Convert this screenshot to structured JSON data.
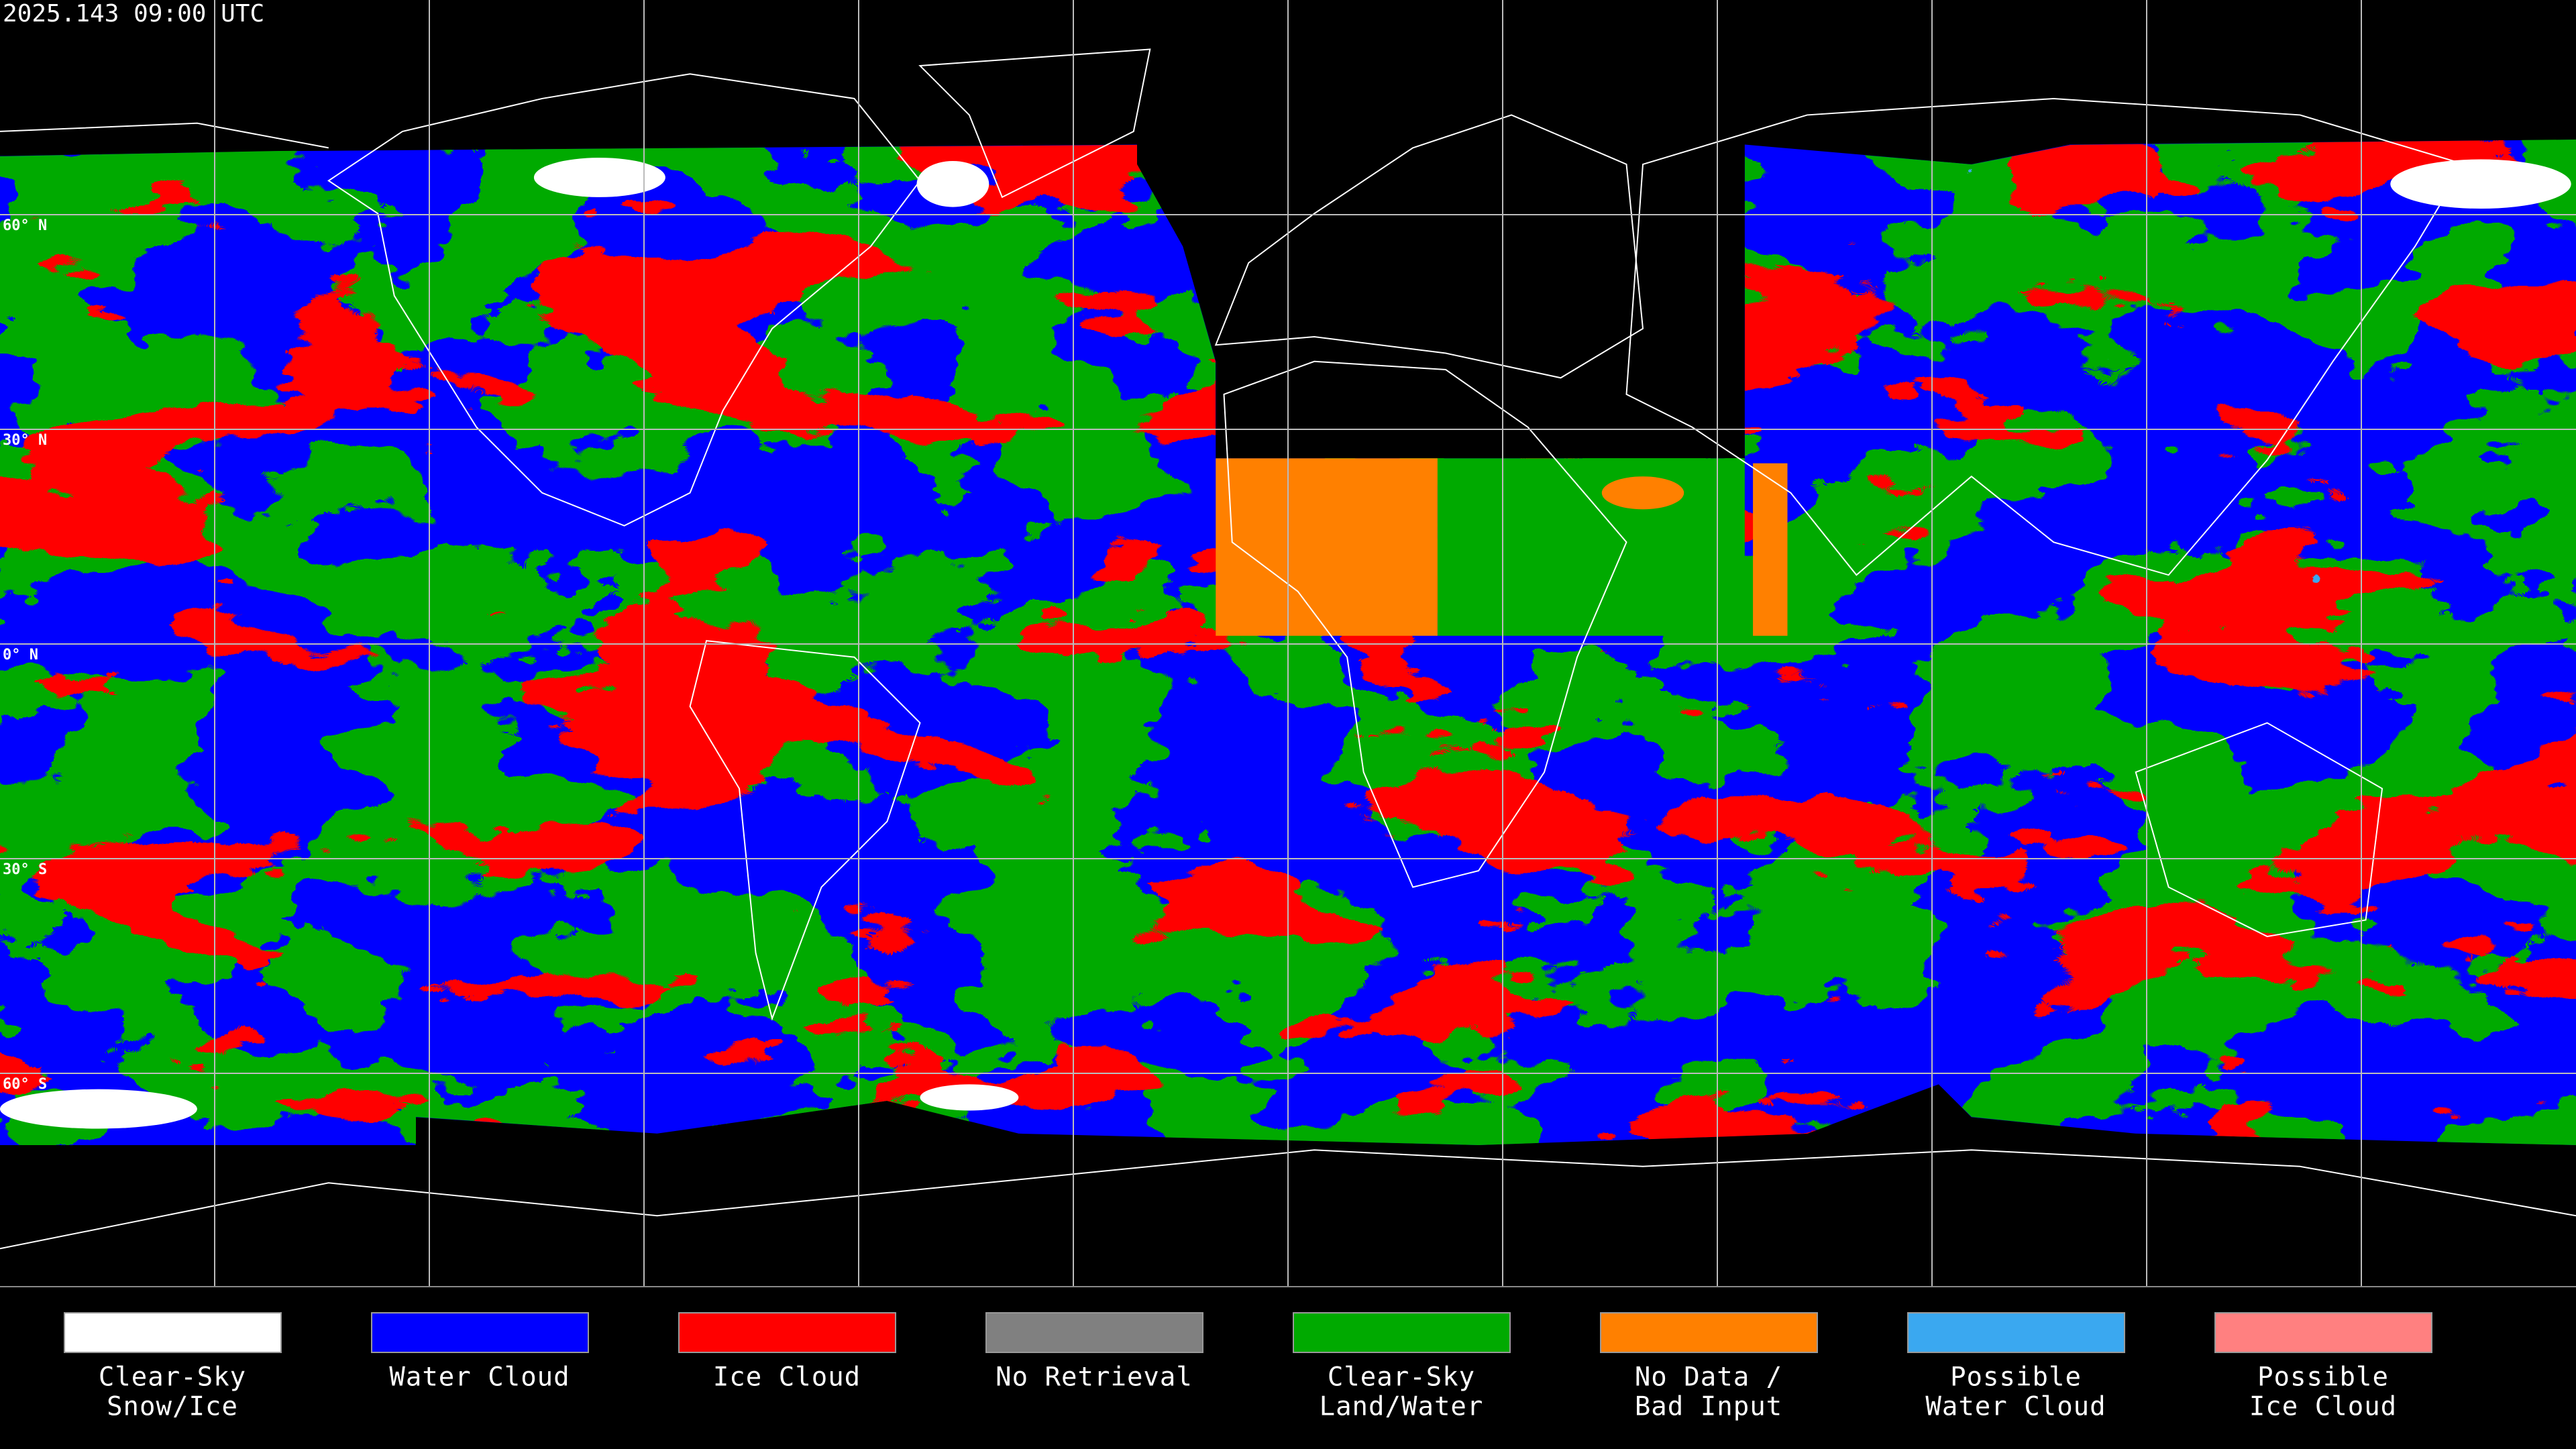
{
  "header": {
    "title": "2025.143 09:00 UTC"
  },
  "lat_labels": [
    "60° N",
    "30° N",
    "0° N",
    "30° S",
    "60° S"
  ],
  "legend": [
    {
      "lines": [
        "Clear-Sky",
        "Snow/Ice"
      ],
      "color": "#ffffff"
    },
    {
      "lines": [
        "Water Cloud"
      ],
      "color": "#0000ff"
    },
    {
      "lines": [
        "Ice Cloud"
      ],
      "color": "#ff0000"
    },
    {
      "lines": [
        "No Retrieval"
      ],
      "color": "#808080"
    },
    {
      "lines": [
        "Clear-Sky",
        "Land/Water"
      ],
      "color": "#00aa00"
    },
    {
      "lines": [
        "No Data /",
        "Bad Input"
      ],
      "color": "#ff8000"
    },
    {
      "lines": [
        "Possible",
        "Water Cloud"
      ],
      "color": "#3aa8f0"
    },
    {
      "lines": [
        "Possible",
        "Ice Cloud"
      ],
      "color": "#ff8080"
    }
  ]
}
